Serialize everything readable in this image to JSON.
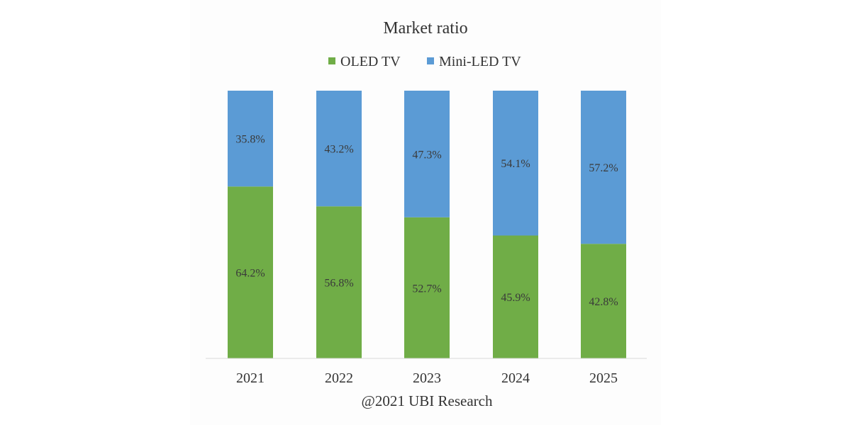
{
  "chart_data": {
    "type": "bar",
    "stacked": true,
    "title": "Market ratio",
    "categories": [
      "2021",
      "2022",
      "2023",
      "2024",
      "2025"
    ],
    "series": [
      {
        "name": "OLED TV",
        "values": [
          64.2,
          56.8,
          52.7,
          45.9,
          42.8
        ],
        "labels": [
          "64.2%",
          "56.8%",
          "52.7%",
          "45.9%",
          "42.8%"
        ],
        "color": "#70AD47"
      },
      {
        "name": "Mini-LED TV",
        "values": [
          35.8,
          43.2,
          47.3,
          54.1,
          57.2
        ],
        "labels": [
          "35.8%",
          "43.2%",
          "47.3%",
          "54.1%",
          "57.2%"
        ],
        "color": "#5B9BD5"
      }
    ],
    "ylim": [
      0,
      100
    ],
    "grid": false,
    "legend_position": "top",
    "source": "@2021 UBI Research"
  }
}
